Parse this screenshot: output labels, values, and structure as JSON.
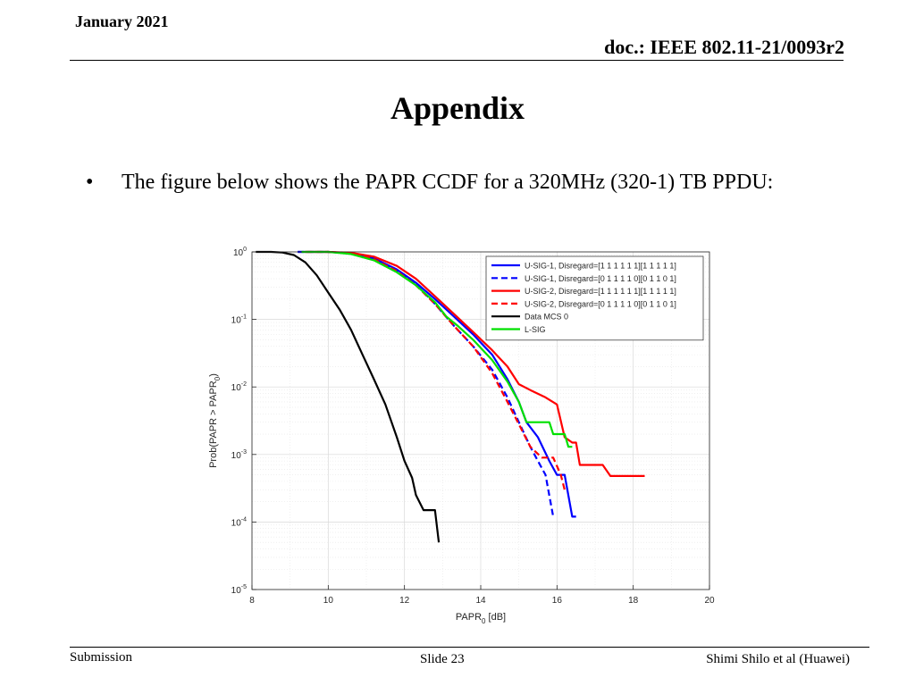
{
  "header": {
    "date": "January 2021",
    "doc": "doc.: IEEE 802.11-21/0093r2"
  },
  "slide": {
    "title": "Appendix",
    "bullet_char": "•",
    "bullet_text": "The figure below shows the PAPR CCDF for a 320MHz (320-1) TB PPDU:"
  },
  "footer": {
    "left": "Submission",
    "center": "Slide 23",
    "right": "Shimi Shilo et al (Huawei)"
  },
  "chart_data": {
    "type": "line",
    "title": "",
    "xlabel": "PAPR",
    "xlabel_subscript": "0",
    "xlabel_suffix": " [dB]",
    "ylabel": "Prob(PAPR > PAPR",
    "ylabel_subscript": "0",
    "ylabel_suffix": ")",
    "xlim": [
      8,
      20
    ],
    "ylim": [
      1e-05,
      1
    ],
    "yscale": "log",
    "grid": true,
    "legend_position": "top-right",
    "x_ticks": [
      8,
      10,
      12,
      14,
      16,
      18,
      20
    ],
    "y_ticks": [
      {
        "value": 1,
        "base": "10",
        "exp": "0"
      },
      {
        "value": 0.1,
        "base": "10",
        "exp": "-1"
      },
      {
        "value": 0.01,
        "base": "10",
        "exp": "-2"
      },
      {
        "value": 0.001,
        "base": "10",
        "exp": "-3"
      },
      {
        "value": 0.0001,
        "base": "10",
        "exp": "-4"
      },
      {
        "value": 1e-05,
        "base": "10",
        "exp": "-5"
      }
    ],
    "series": [
      {
        "name": "U-SIG-1, Disregard=[1 1 1 1 1 1][1 1 1 1 1]",
        "color": "#0000ff",
        "dash": "solid",
        "points": [
          [
            9.2,
            1
          ],
          [
            10,
            1
          ],
          [
            10.6,
            0.95
          ],
          [
            11.2,
            0.8
          ],
          [
            11.8,
            0.55
          ],
          [
            12.3,
            0.35
          ],
          [
            12.8,
            0.2
          ],
          [
            13.3,
            0.11
          ],
          [
            13.8,
            0.06
          ],
          [
            14.3,
            0.03
          ],
          [
            14.7,
            0.013
          ],
          [
            15,
            0.006
          ],
          [
            15.2,
            0.003
          ],
          [
            15.5,
            0.0018
          ],
          [
            15.8,
            0.0008
          ],
          [
            16,
            0.0005
          ],
          [
            16.2,
            0.0005
          ],
          [
            16.4,
            0.00012
          ],
          [
            16.5,
            0.00012
          ]
        ]
      },
      {
        "name": "U-SIG-1, Disregard=[0 1 1 1 1 0][0 1 1 0 1]",
        "color": "#0000ff",
        "dash": "dashed",
        "points": [
          [
            9.2,
            1
          ],
          [
            10,
            1
          ],
          [
            10.6,
            0.95
          ],
          [
            11.2,
            0.78
          ],
          [
            11.8,
            0.52
          ],
          [
            12.3,
            0.33
          ],
          [
            12.8,
            0.17
          ],
          [
            13.3,
            0.08
          ],
          [
            13.8,
            0.04
          ],
          [
            14.3,
            0.018
          ],
          [
            14.7,
            0.007
          ],
          [
            15,
            0.003
          ],
          [
            15.3,
            0.0013
          ],
          [
            15.5,
            0.0008
          ],
          [
            15.7,
            0.0005
          ],
          [
            15.9,
            0.00012
          ]
        ]
      },
      {
        "name": "U-SIG-2, Disregard=[1 1 1 1 1 1][1 1 1 1 1]",
        "color": "#ff0000",
        "dash": "solid",
        "points": [
          [
            9.4,
            1
          ],
          [
            10,
            1
          ],
          [
            10.6,
            0.97
          ],
          [
            11.2,
            0.85
          ],
          [
            11.8,
            0.62
          ],
          [
            12.3,
            0.4
          ],
          [
            12.8,
            0.22
          ],
          [
            13.3,
            0.12
          ],
          [
            13.8,
            0.065
          ],
          [
            14.3,
            0.035
          ],
          [
            14.7,
            0.02
          ],
          [
            15,
            0.011
          ],
          [
            15.3,
            0.009
          ],
          [
            15.7,
            0.007
          ],
          [
            16,
            0.0055
          ],
          [
            16.2,
            0.0018
          ],
          [
            16.4,
            0.0015
          ],
          [
            16.5,
            0.0015
          ],
          [
            16.6,
            0.0007
          ],
          [
            17,
            0.0007
          ],
          [
            17.2,
            0.0007
          ],
          [
            17.4,
            0.00048
          ],
          [
            18.3,
            0.00048
          ]
        ]
      },
      {
        "name": "U-SIG-2, Disregard=[0 1 1 1 1 0][0 1 1 0 1]",
        "color": "#ff0000",
        "dash": "dashed",
        "points": [
          [
            9.4,
            1
          ],
          [
            10,
            1
          ],
          [
            10.6,
            0.95
          ],
          [
            11.2,
            0.78
          ],
          [
            11.8,
            0.52
          ],
          [
            12.3,
            0.32
          ],
          [
            12.8,
            0.17
          ],
          [
            13.3,
            0.08
          ],
          [
            13.8,
            0.04
          ],
          [
            14.3,
            0.016
          ],
          [
            14.7,
            0.006
          ],
          [
            15,
            0.0028
          ],
          [
            15.3,
            0.0013
          ],
          [
            15.6,
            0.0009
          ],
          [
            15.9,
            0.0009
          ],
          [
            16.1,
            0.0005
          ],
          [
            16.2,
            0.0003
          ]
        ]
      },
      {
        "name": "Data MCS 0",
        "color": "#000000",
        "dash": "solid",
        "points": [
          [
            8.1,
            1
          ],
          [
            8.5,
            1
          ],
          [
            8.8,
            0.98
          ],
          [
            9.1,
            0.9
          ],
          [
            9.4,
            0.7
          ],
          [
            9.7,
            0.45
          ],
          [
            10,
            0.25
          ],
          [
            10.3,
            0.14
          ],
          [
            10.6,
            0.07
          ],
          [
            10.9,
            0.03
          ],
          [
            11.2,
            0.013
          ],
          [
            11.5,
            0.0055
          ],
          [
            11.8,
            0.0018
          ],
          [
            12,
            0.0008
          ],
          [
            12.2,
            0.00045
          ],
          [
            12.3,
            0.00025
          ],
          [
            12.5,
            0.00015
          ],
          [
            12.8,
            0.00015
          ],
          [
            12.9,
            5e-05
          ]
        ]
      },
      {
        "name": "L-SIG",
        "color": "#00e000",
        "dash": "solid",
        "points": [
          [
            9.3,
            1
          ],
          [
            10,
            1
          ],
          [
            10.6,
            0.93
          ],
          [
            11.2,
            0.75
          ],
          [
            11.8,
            0.5
          ],
          [
            12.3,
            0.32
          ],
          [
            12.8,
            0.18
          ],
          [
            13.1,
            0.11
          ],
          [
            13.4,
            0.08
          ],
          [
            13.8,
            0.05
          ],
          [
            14.3,
            0.025
          ],
          [
            14.7,
            0.012
          ],
          [
            15,
            0.006
          ],
          [
            15.2,
            0.003
          ],
          [
            15.5,
            0.003
          ],
          [
            15.8,
            0.003
          ],
          [
            15.9,
            0.002
          ],
          [
            16.2,
            0.002
          ],
          [
            16.3,
            0.0013
          ],
          [
            16.4,
            0.0013
          ]
        ]
      }
    ]
  }
}
